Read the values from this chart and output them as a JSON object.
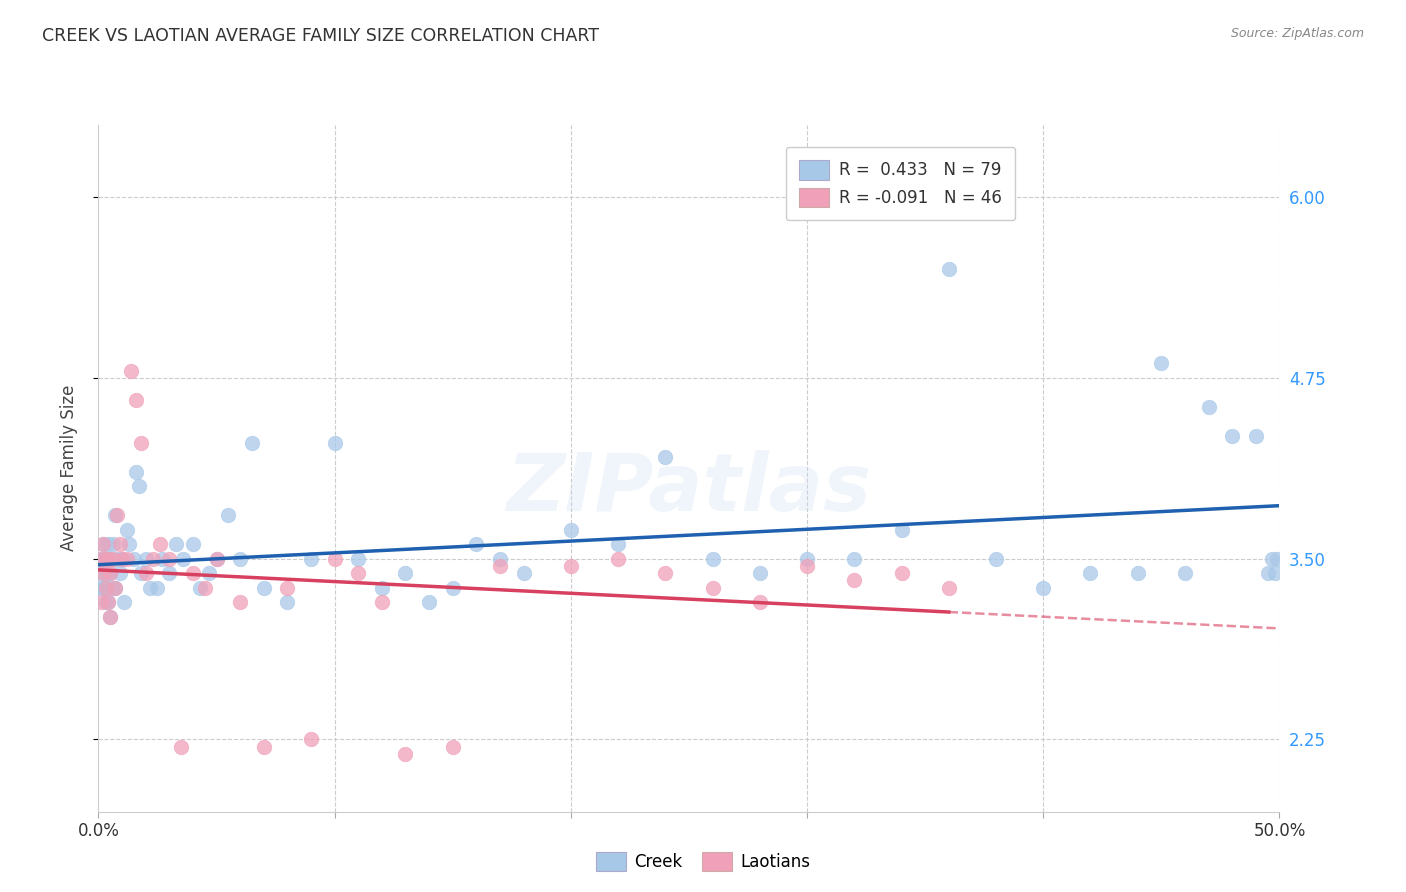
{
  "title": "CREEK VS LAOTIAN AVERAGE FAMILY SIZE CORRELATION CHART",
  "source": "Source: ZipAtlas.com",
  "ylabel": "Average Family Size",
  "watermark": "ZIPatlas",
  "xlim": [
    0.0,
    0.5
  ],
  "ylim": [
    1.75,
    6.5
  ],
  "yticks": [
    2.25,
    3.5,
    4.75,
    6.0
  ],
  "ytick_labels": [
    "2.25",
    "3.50",
    "4.75",
    "6.00"
  ],
  "xticks": [
    0.0,
    0.1,
    0.2,
    0.3,
    0.4,
    0.5
  ],
  "xtick_labels": [
    "0.0%",
    "",
    "",
    "",
    "",
    "50.0%"
  ],
  "creek_color": "#a8c8e8",
  "laotian_color": "#f0a0b8",
  "creek_line_color": "#2060b0",
  "laotian_line_color": "#d84060",
  "creek_R": 0.433,
  "creek_N": 79,
  "laotian_R": -0.091,
  "laotian_N": 46,
  "background_color": "#ffffff",
  "grid_color": "#cccccc",
  "creek_x": [
    0.001,
    0.001,
    0.001,
    0.002,
    0.002,
    0.002,
    0.003,
    0.003,
    0.003,
    0.003,
    0.004,
    0.004,
    0.004,
    0.004,
    0.005,
    0.005,
    0.005,
    0.006,
    0.006,
    0.007,
    0.007,
    0.008,
    0.009,
    0.01,
    0.011,
    0.012,
    0.013,
    0.015,
    0.016,
    0.017,
    0.018,
    0.02,
    0.022,
    0.025,
    0.027,
    0.03,
    0.033,
    0.036,
    0.04,
    0.043,
    0.047,
    0.05,
    0.055,
    0.06,
    0.065,
    0.07,
    0.08,
    0.09,
    0.1,
    0.11,
    0.12,
    0.13,
    0.14,
    0.15,
    0.16,
    0.17,
    0.18,
    0.2,
    0.22,
    0.24,
    0.26,
    0.28,
    0.3,
    0.32,
    0.34,
    0.36,
    0.38,
    0.4,
    0.42,
    0.44,
    0.45,
    0.46,
    0.47,
    0.48,
    0.49,
    0.495,
    0.497,
    0.498,
    0.499
  ],
  "creek_y": [
    3.4,
    3.5,
    3.3,
    3.3,
    3.5,
    3.6,
    3.2,
    3.4,
    3.5,
    3.3,
    3.2,
    3.3,
    3.5,
    3.6,
    3.1,
    3.4,
    3.5,
    3.3,
    3.6,
    3.3,
    3.8,
    3.5,
    3.4,
    3.5,
    3.2,
    3.7,
    3.6,
    3.5,
    4.1,
    4.0,
    3.4,
    3.5,
    3.3,
    3.3,
    3.5,
    3.4,
    3.6,
    3.5,
    3.6,
    3.3,
    3.4,
    3.5,
    3.8,
    3.5,
    4.3,
    3.3,
    3.2,
    3.5,
    4.3,
    3.5,
    3.3,
    3.4,
    3.2,
    3.3,
    3.6,
    3.5,
    3.4,
    3.7,
    3.6,
    4.2,
    3.5,
    3.4,
    3.5,
    3.5,
    3.7,
    5.5,
    3.5,
    3.3,
    3.4,
    3.4,
    4.85,
    3.4,
    4.55,
    4.35,
    4.35,
    3.4,
    3.5,
    3.4,
    3.5
  ],
  "laotian_x": [
    0.001,
    0.001,
    0.002,
    0.002,
    0.003,
    0.003,
    0.004,
    0.004,
    0.005,
    0.005,
    0.006,
    0.007,
    0.008,
    0.009,
    0.01,
    0.012,
    0.014,
    0.016,
    0.018,
    0.02,
    0.023,
    0.026,
    0.03,
    0.035,
    0.04,
    0.045,
    0.05,
    0.06,
    0.07,
    0.08,
    0.09,
    0.1,
    0.11,
    0.12,
    0.13,
    0.15,
    0.17,
    0.2,
    0.22,
    0.24,
    0.26,
    0.28,
    0.3,
    0.32,
    0.34,
    0.36
  ],
  "laotian_y": [
    3.2,
    3.5,
    3.4,
    3.6,
    3.3,
    3.5,
    3.2,
    3.5,
    3.1,
    3.4,
    3.5,
    3.3,
    3.8,
    3.6,
    3.5,
    3.5,
    4.8,
    4.6,
    4.3,
    3.4,
    3.5,
    3.6,
    3.5,
    2.2,
    3.4,
    3.3,
    3.5,
    3.2,
    2.2,
    3.3,
    2.25,
    3.5,
    3.4,
    3.2,
    2.15,
    2.2,
    3.45,
    3.45,
    3.5,
    3.4,
    3.3,
    3.2,
    3.45,
    3.35,
    3.4,
    3.3
  ]
}
